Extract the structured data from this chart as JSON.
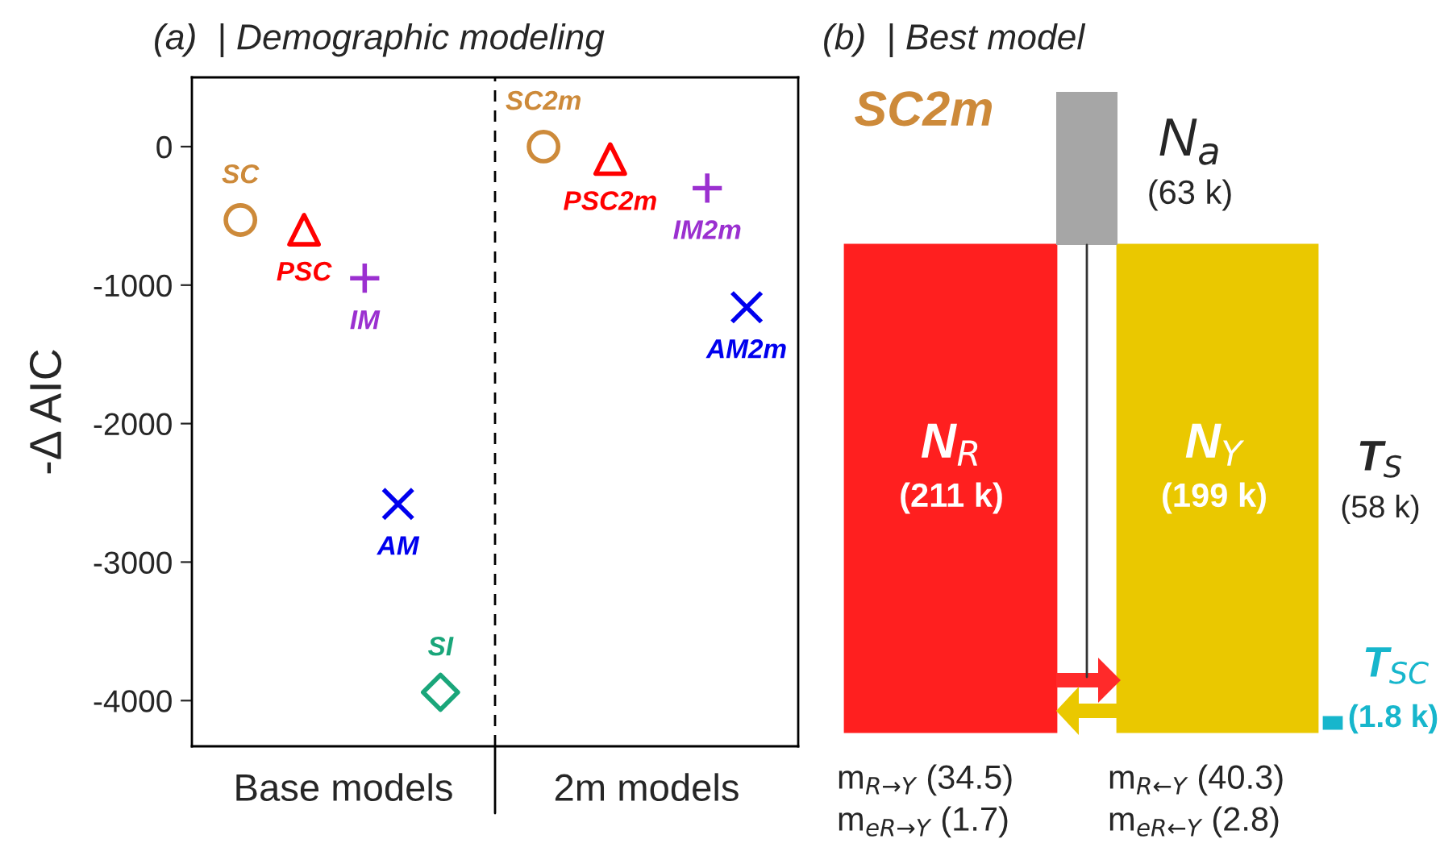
{
  "chart_data": [
    {
      "type": "scatter",
      "title": "(a)  | Demographic modeling",
      "ylabel": "-Δ AIC",
      "categories": [
        "Base models",
        "2m models"
      ],
      "ylim": [
        -4330,
        500
      ],
      "yticks": [
        0,
        -1000,
        -2000,
        -3000,
        -4000
      ],
      "grid": false,
      "series": [
        {
          "name": "SC",
          "color": "#cd8a3a",
          "marker": "circle",
          "x": [
            "Base models"
          ],
          "values": [
            -530
          ]
        },
        {
          "name": "PSC",
          "color": "#ff0000",
          "marker": "triangle",
          "x": [
            "Base models"
          ],
          "values": [
            -600
          ]
        },
        {
          "name": "IM",
          "color": "#9b30d0",
          "marker": "plus",
          "x": [
            "Base models"
          ],
          "values": [
            -950
          ]
        },
        {
          "name": "AM",
          "color": "#0000ee",
          "marker": "cross",
          "x": [
            "Base models"
          ],
          "values": [
            -2580
          ]
        },
        {
          "name": "SI",
          "color": "#1aa67a",
          "marker": "diamond",
          "x": [
            "Base models"
          ],
          "values": [
            -3940
          ]
        },
        {
          "name": "SC2m",
          "color": "#cd8a3a",
          "marker": "circle",
          "x": [
            "2m models"
          ],
          "values": [
            0
          ]
        },
        {
          "name": "PSC2m",
          "color": "#ff0000",
          "marker": "triangle",
          "x": [
            "2m models"
          ],
          "values": [
            -90
          ]
        },
        {
          "name": "IM2m",
          "color": "#9b30d0",
          "marker": "plus",
          "x": [
            "2m models"
          ],
          "values": [
            -300
          ]
        },
        {
          "name": "AM2m",
          "color": "#0000ee",
          "marker": "cross",
          "x": [
            "2m models"
          ],
          "values": [
            -1160
          ]
        }
      ]
    },
    {
      "type": "other",
      "title": "(b)  | Best model",
      "annotations": [
        "SC2m",
        "N$_{a}$",
        "(63 k)",
        "N$_{R}$",
        "(211 k)",
        "N$_{Y}$",
        "(199 k)",
        "T$_{S}$",
        "(58 k)",
        "T$_{SC}$",
        "(1.8 k)",
        "m$_{R→Y}$ (34.5)",
        "m$_{eR→Y}$ (1.7)",
        "m$_{R←Y}$ (40.3)",
        "m$_{eR←Y}$ (2.8)"
      ]
    }
  ]
}
